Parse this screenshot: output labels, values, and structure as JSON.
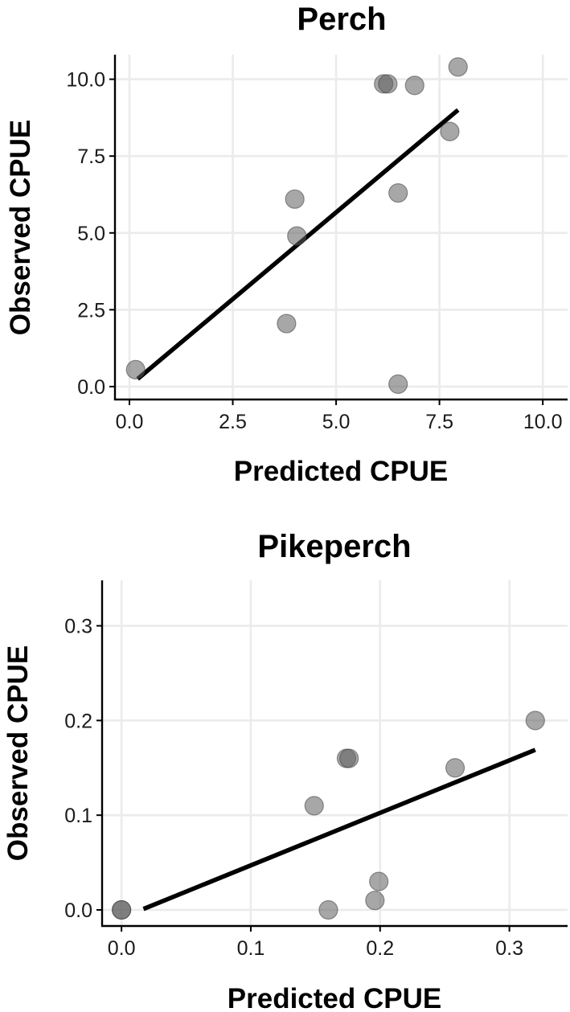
{
  "chart_data": [
    {
      "type": "scatter",
      "title": "Perch",
      "xlabel": "Predicted CPUE",
      "ylabel": "Observed CPUE",
      "xlim": [
        -0.35,
        10.6
      ],
      "ylim": [
        -0.42,
        10.8
      ],
      "xticks": [
        0.0,
        2.5,
        5.0,
        7.5,
        10.0
      ],
      "xtick_labels": [
        "0.0",
        "2.5",
        "5.0",
        "7.5",
        "10.0"
      ],
      "yticks": [
        0.0,
        2.5,
        5.0,
        7.5,
        10.0
      ],
      "ytick_labels": [
        "0.0",
        "2.5",
        "5.0",
        "7.5",
        "10.0"
      ],
      "grid": true,
      "point_color": "#5f5f5f",
      "line_color": "#000000",
      "points": [
        {
          "x": 0.15,
          "y": 0.55
        },
        {
          "x": 3.8,
          "y": 2.05
        },
        {
          "x": 4.0,
          "y": 6.1
        },
        {
          "x": 4.05,
          "y": 4.9
        },
        {
          "x": 6.15,
          "y": 9.85
        },
        {
          "x": 6.25,
          "y": 9.85
        },
        {
          "x": 6.5,
          "y": 6.3
        },
        {
          "x": 6.5,
          "y": 0.08
        },
        {
          "x": 6.9,
          "y": 9.8
        },
        {
          "x": 7.75,
          "y": 8.3
        },
        {
          "x": 7.95,
          "y": 10.4
        }
      ],
      "fit_line": {
        "x": [
          0.2,
          7.95
        ],
        "y": [
          0.25,
          9.0
        ]
      }
    },
    {
      "type": "scatter",
      "title": "Pikeperch",
      "xlabel": "Predicted CPUE",
      "ylabel": "Observed CPUE",
      "xlim": [
        -0.015,
        0.345
      ],
      "ylim": [
        -0.017,
        0.348
      ],
      "xticks": [
        0.0,
        0.1,
        0.2,
        0.3
      ],
      "xtick_labels": [
        "0.0",
        "0.1",
        "0.2",
        "0.3"
      ],
      "yticks": [
        0.0,
        0.1,
        0.2,
        0.3
      ],
      "ytick_labels": [
        "0.0",
        "0.1",
        "0.2",
        "0.3"
      ],
      "grid": true,
      "point_color": "#5f5f5f",
      "line_color": "#000000",
      "points": [
        {
          "x": 0.0,
          "y": 0.0
        },
        {
          "x": 0.0,
          "y": 0.0
        },
        {
          "x": 0.149,
          "y": 0.11
        },
        {
          "x": 0.16,
          "y": 0.0
        },
        {
          "x": 0.174,
          "y": 0.16
        },
        {
          "x": 0.176,
          "y": 0.16
        },
        {
          "x": 0.196,
          "y": 0.01
        },
        {
          "x": 0.199,
          "y": 0.03
        },
        {
          "x": 0.258,
          "y": 0.15
        },
        {
          "x": 0.32,
          "y": 0.2
        }
      ],
      "fit_line": {
        "x": [
          0.017,
          0.32
        ],
        "y": [
          0.001,
          0.169
        ]
      }
    }
  ]
}
